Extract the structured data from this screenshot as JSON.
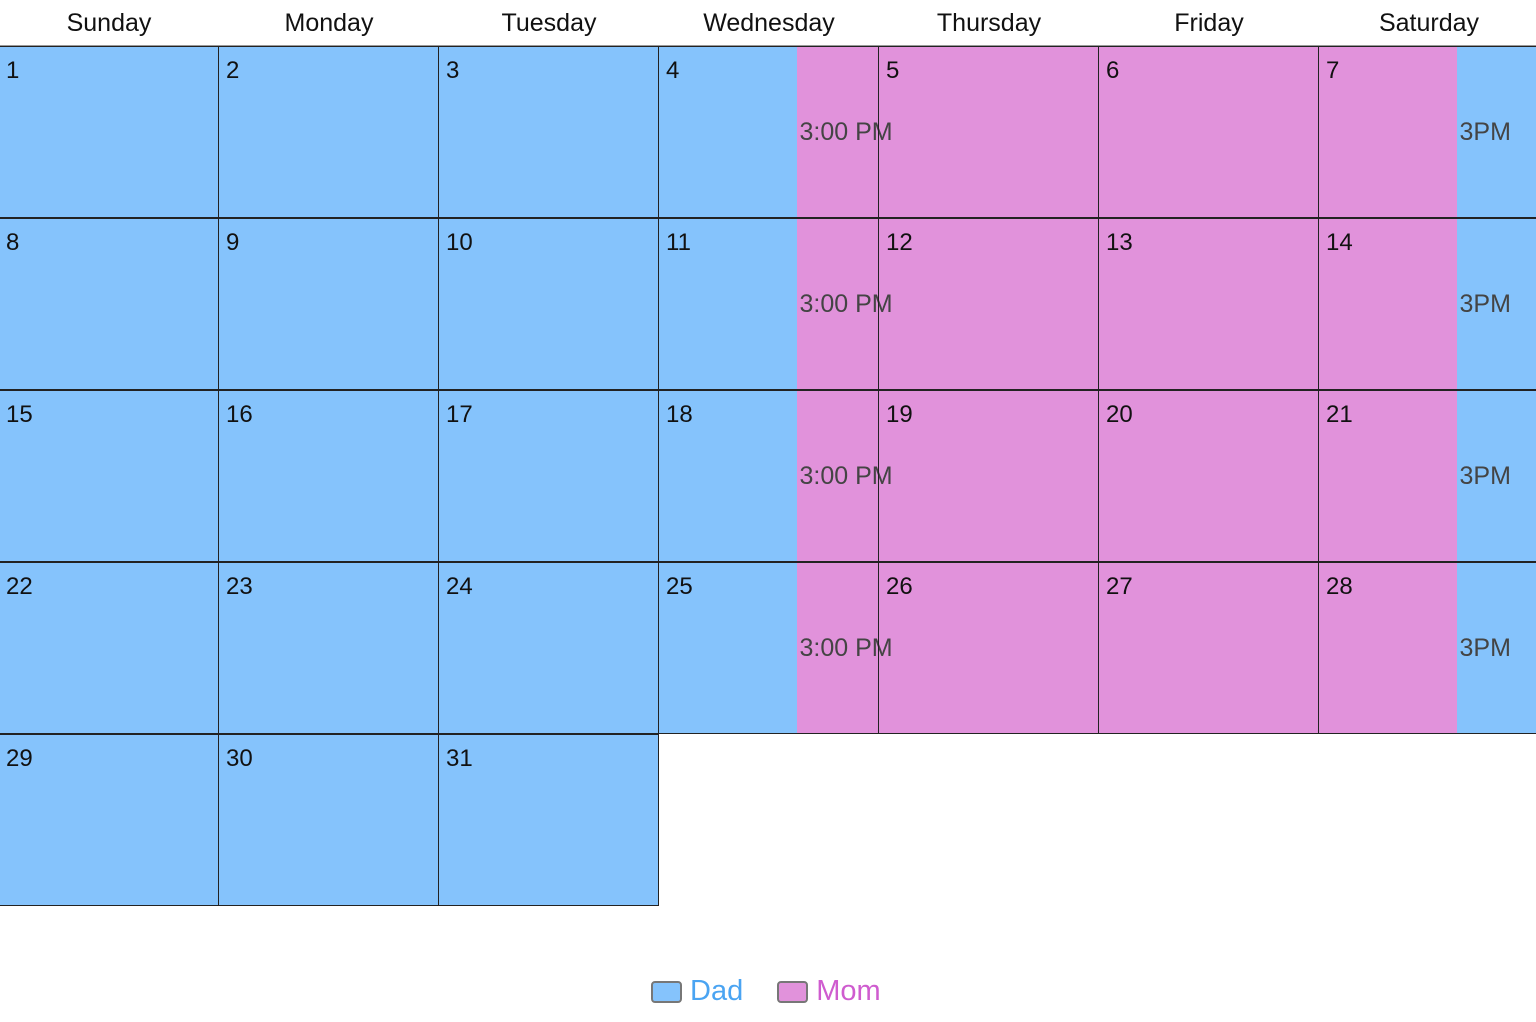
{
  "weekdays": [
    "Sunday",
    "Monday",
    "Tuesday",
    "Wednesday",
    "Thursday",
    "Friday",
    "Saturday"
  ],
  "month_days": 31,
  "first_weekday": 0,
  "colors": {
    "dad": "#85c3fc",
    "mom": "#e192db",
    "dad_text": "#4aa4f2",
    "mom_text": "#cf5ccf"
  },
  "default_owner": "Dad",
  "events": [
    {
      "owner": "Mom",
      "start_day": 4,
      "start_time": "3:00 PM",
      "end_day": 7,
      "end_time": "3PM"
    },
    {
      "owner": "Mom",
      "start_day": 11,
      "start_time": "3:00 PM",
      "end_day": 14,
      "end_time": "3PM"
    },
    {
      "owner": "Mom",
      "start_day": 18,
      "start_time": "3:00 PM",
      "end_day": 21,
      "end_time": "3PM"
    },
    {
      "owner": "Mom",
      "start_day": 25,
      "start_time": "3:00 PM",
      "end_day": 28,
      "end_time": "3PM"
    }
  ],
  "legend": [
    {
      "label": "Dad",
      "color": "#85c3fc",
      "text_color": "#4aa4f2"
    },
    {
      "label": "Mom",
      "color": "#e192db",
      "text_color": "#cf5ccf"
    }
  ]
}
